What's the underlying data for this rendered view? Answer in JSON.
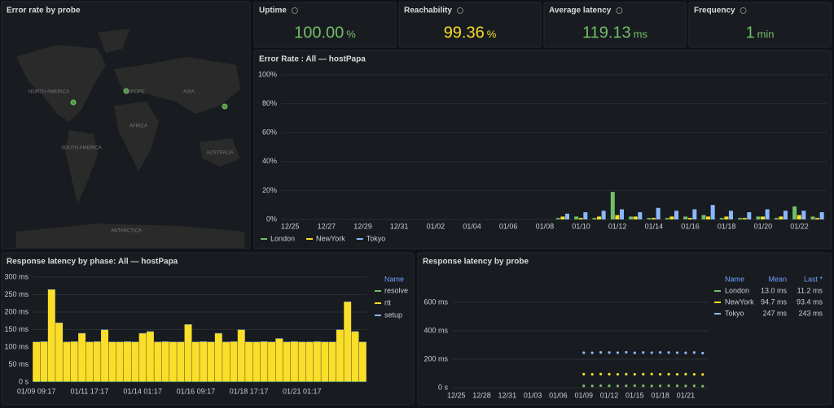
{
  "map_panel": {
    "title": "Error rate by probe",
    "labels": [
      "NORTH AMERICA",
      "EUROPE",
      "ASIA",
      "AFRICA",
      "SOUTH AMERICA",
      "AUSTRALIA",
      "ANTARCTICA"
    ]
  },
  "stats": [
    {
      "title": "Uptime",
      "value": "100.00",
      "unit": "%",
      "color": "#73bf69"
    },
    {
      "title": "Reachability",
      "value": "99.36",
      "unit": "%",
      "color": "#fade2a"
    },
    {
      "title": "Average latency",
      "value": "119.13",
      "unit": "ms",
      "color": "#73bf69"
    },
    {
      "title": "Frequency",
      "value": "1",
      "unit": "min",
      "color": "#73bf69"
    }
  ],
  "chart_data": [
    {
      "type": "bar",
      "title": "Error Rate : All — hostPapa",
      "categories": [
        "12/25",
        null,
        "12/27",
        null,
        "12/29",
        null,
        "12/31",
        null,
        "01/02",
        null,
        "01/04",
        null,
        "01/06",
        null,
        "01/08",
        null,
        "01/10",
        null,
        "01/12",
        null,
        "01/14",
        null,
        "01/16",
        null,
        "01/18",
        null,
        "01/20",
        null,
        "01/22",
        null
      ],
      "series": [
        {
          "name": "London",
          "color": "#73bf69",
          "values": [
            null,
            null,
            null,
            null,
            null,
            null,
            null,
            null,
            null,
            null,
            null,
            null,
            null,
            null,
            null,
            1,
            2,
            1,
            19,
            2,
            1,
            1,
            2,
            3,
            1,
            1,
            2,
            1,
            9,
            2
          ]
        },
        {
          "name": "NewYork",
          "color": "#fade2a",
          "values": [
            null,
            null,
            null,
            null,
            null,
            null,
            null,
            null,
            null,
            null,
            null,
            null,
            null,
            null,
            null,
            2,
            1,
            2,
            3,
            2,
            1,
            2,
            1,
            2,
            2,
            1,
            2,
            2,
            3,
            1
          ]
        },
        {
          "name": "Tokyo",
          "color": "#8ab8ff",
          "values": [
            null,
            null,
            null,
            null,
            null,
            null,
            null,
            null,
            null,
            null,
            null,
            null,
            null,
            null,
            null,
            4,
            5,
            6,
            7,
            5,
            8,
            6,
            7,
            10,
            6,
            5,
            7,
            6,
            6,
            5
          ]
        }
      ],
      "ylim": [
        0,
        100
      ],
      "yticks": [
        {
          "value": 0,
          "label": "0%"
        },
        {
          "value": 20,
          "label": "20%"
        },
        {
          "value": 40,
          "label": "40%"
        },
        {
          "value": 60,
          "label": "60%"
        },
        {
          "value": 80,
          "label": "80%"
        },
        {
          "value": 100,
          "label": "100%"
        }
      ],
      "grid": true,
      "legend": "bottom"
    },
    {
      "type": "stacked-bar",
      "title": "Response latency by phase: All — hostPapa",
      "categories": [
        "01/09 09:17",
        null,
        null,
        null,
        null,
        null,
        null,
        "01/11 17:17",
        null,
        null,
        null,
        null,
        null,
        null,
        "01/14 01:17",
        null,
        null,
        null,
        null,
        null,
        null,
        "01/16 09:17",
        null,
        null,
        null,
        null,
        null,
        null,
        "01/18 17:17",
        null,
        null,
        null,
        null,
        null,
        null,
        "01/21 01:17",
        null,
        null,
        null,
        null,
        null,
        null,
        null,
        null
      ],
      "series": [
        {
          "name": "resolve",
          "color": "#73bf69",
          "values": [
            2,
            2,
            2,
            2,
            2,
            2,
            2,
            2,
            2,
            2,
            2,
            2,
            2,
            2,
            2,
            2,
            2,
            2,
            2,
            2,
            2,
            2,
            2,
            2,
            2,
            2,
            2,
            2,
            2,
            2,
            2,
            2,
            2,
            2,
            2,
            2,
            2,
            2,
            2,
            2,
            2,
            2,
            2,
            2
          ]
        },
        {
          "name": "rtt",
          "color": "#fade2a",
          "values": [
            112,
            113,
            262,
            167,
            112,
            113,
            137,
            112,
            113,
            147,
            112,
            112,
            113,
            112,
            137,
            142,
            112,
            113,
            112,
            112,
            162,
            112,
            113,
            112,
            137,
            112,
            113,
            147,
            112,
            112,
            113,
            112,
            122,
            112,
            113,
            112,
            112,
            113,
            112,
            112,
            147,
            227,
            142,
            112
          ]
        },
        {
          "name": "setup",
          "color": "#8ab8ff",
          "values": [
            1,
            1,
            1,
            1,
            1,
            1,
            1,
            1,
            1,
            1,
            1,
            1,
            1,
            1,
            1,
            1,
            1,
            1,
            1,
            1,
            1,
            1,
            1,
            1,
            1,
            1,
            1,
            1,
            1,
            1,
            1,
            1,
            1,
            1,
            1,
            1,
            1,
            1,
            1,
            1,
            1,
            1,
            1,
            1
          ]
        }
      ],
      "ylim": [
        0,
        300
      ],
      "yticks": [
        {
          "value": 0,
          "label": "0 s"
        },
        {
          "value": 50,
          "label": "50 ms"
        },
        {
          "value": 100,
          "label": "100 ms"
        },
        {
          "value": 150,
          "label": "150 ms"
        },
        {
          "value": 200,
          "label": "200 ms"
        },
        {
          "value": 250,
          "label": "250 ms"
        },
        {
          "value": 300,
          "label": "300 ms"
        }
      ],
      "grid": true,
      "legend": "right",
      "legend_header": "Name"
    },
    {
      "type": "scatter",
      "title": "Response latency by probe",
      "categories": [
        "12/25",
        null,
        null,
        "12/28",
        null,
        null,
        "12/31",
        null,
        null,
        "01/03",
        null,
        null,
        "01/06",
        null,
        null,
        "01/09",
        null,
        null,
        "01/12",
        null,
        null,
        "01/15",
        null,
        null,
        "01/18",
        null,
        null,
        "01/21",
        null,
        null
      ],
      "series": [
        {
          "name": "London",
          "color": "#73bf69",
          "values": [
            null,
            null,
            null,
            null,
            null,
            null,
            null,
            null,
            null,
            null,
            null,
            null,
            null,
            null,
            null,
            13,
            12,
            14,
            13,
            12,
            13,
            14,
            13,
            12,
            13,
            14,
            13,
            12,
            13,
            11
          ]
        },
        {
          "name": "NewYork",
          "color": "#fade2a",
          "values": [
            null,
            null,
            null,
            null,
            null,
            null,
            null,
            null,
            null,
            null,
            null,
            null,
            null,
            null,
            null,
            95,
            94,
            96,
            95,
            94,
            95,
            94,
            95,
            96,
            94,
            95,
            94,
            95,
            94,
            93
          ]
        },
        {
          "name": "Tokyo",
          "color": "#8ab8ff",
          "values": [
            null,
            null,
            null,
            null,
            null,
            null,
            null,
            null,
            null,
            null,
            null,
            null,
            null,
            null,
            null,
            246,
            245,
            248,
            247,
            246,
            249,
            245,
            247,
            246,
            248,
            247,
            246,
            245,
            247,
            243
          ]
        }
      ],
      "ylim": [
        0,
        750
      ],
      "yticks": [
        {
          "value": 0,
          "label": "0 s"
        },
        {
          "value": 200,
          "label": "200 ms"
        },
        {
          "value": 400,
          "label": "400 ms"
        },
        {
          "value": 600,
          "label": "600 ms"
        }
      ],
      "grid": true,
      "legend": "right",
      "legend_table": {
        "columns": [
          "Name",
          "Mean",
          "Last *"
        ],
        "rows": [
          [
            "London",
            "13.0 ms",
            "11.2 ms"
          ],
          [
            "NewYork",
            "94.7 ms",
            "93.4 ms"
          ],
          [
            "Tokyo",
            "247 ms",
            "243 ms"
          ]
        ]
      }
    }
  ]
}
